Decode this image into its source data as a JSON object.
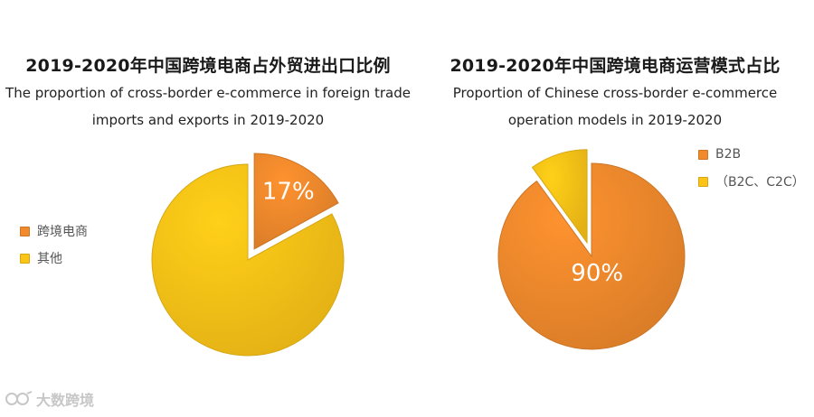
{
  "chart_data": [
    {
      "type": "pie",
      "title": "2019-2020年中国跨境电商占外贸进出口比例",
      "subtitle_lines": [
        "The proportion of cross-border e-commerce in foreign trade",
        "imports and exports in 2019-2020"
      ],
      "slices": [
        {
          "label": "跨境电商",
          "value": 17,
          "display": "17%",
          "color": "#f08a2c",
          "exploded": true
        },
        {
          "label": "其他",
          "value": 83,
          "display": "",
          "color": "#fcc417",
          "exploded": false
        }
      ],
      "legend_position": "left"
    },
    {
      "type": "pie",
      "title": "2019-2020年中国跨境电商运营模式占比",
      "subtitle_lines": [
        "Proportion of Chinese cross-border e-commerce",
        "operation models in 2019-2020"
      ],
      "slices": [
        {
          "label": "B2B",
          "value": 90,
          "display": "90%",
          "color": "#f08a2c",
          "exploded": false
        },
        {
          "label": "（B2C、C2C）",
          "value": 10,
          "display": "",
          "color": "#fcc417",
          "exploded": true
        }
      ],
      "legend_position": "right"
    }
  ],
  "watermark": {
    "text": "大数跨境"
  }
}
